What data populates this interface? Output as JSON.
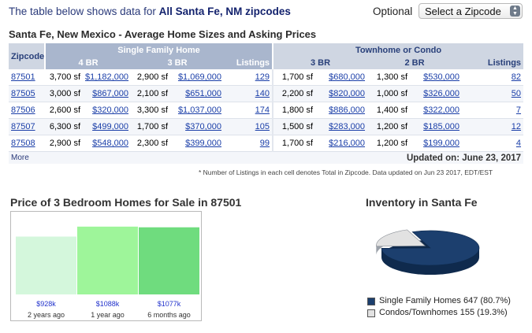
{
  "header": {
    "intro_text": "The table below shows data for",
    "intro_link": "All Santa Fe, NM zipcodes",
    "optional_label": "Optional",
    "zipcode_select": "Select a Zipcode"
  },
  "table": {
    "title": "Santa Fe, New Mexico - Average Home Sizes and Asking Prices",
    "zipcode_header": "Zipcode",
    "single_family_header": "Single Family Home",
    "townhome_header": "Townhome or Condo",
    "col_4br": "4 BR",
    "col_3br": "3 BR",
    "col_listings": "Listings",
    "col_th_3br": "3 BR",
    "col_th_2br": "2 BR",
    "col_th_listings": "Listings",
    "rows": [
      {
        "zip": "87501",
        "sf4_size": "3,700 sf",
        "sf4_price": "$1,182,000",
        "sf3_size": "2,900 sf",
        "sf3_price": "$1,069,000",
        "sf_listings": "129",
        "th3_size": "1,700 sf",
        "th3_price": "$680,000",
        "th2_size": "1,300 sf",
        "th2_price": "$530,000",
        "th_listings": "82"
      },
      {
        "zip": "87505",
        "sf4_size": "3,000 sf",
        "sf4_price": "$867,000",
        "sf3_size": "2,100 sf",
        "sf3_price": "$651,000",
        "sf_listings": "140",
        "th3_size": "2,200 sf",
        "th3_price": "$820,000",
        "th2_size": "1,000 sf",
        "th2_price": "$326,000",
        "th_listings": "50"
      },
      {
        "zip": "87506",
        "sf4_size": "2,600 sf",
        "sf4_price": "$320,000",
        "sf3_size": "3,300 sf",
        "sf3_price": "$1,037,000",
        "sf_listings": "174",
        "th3_size": "1,800 sf",
        "th3_price": "$886,000",
        "th2_size": "1,400 sf",
        "th2_price": "$322,000",
        "th_listings": "7"
      },
      {
        "zip": "87507",
        "sf4_size": "6,300 sf",
        "sf4_price": "$499,000",
        "sf3_size": "1,700 sf",
        "sf3_price": "$370,000",
        "sf_listings": "105",
        "th3_size": "1,500 sf",
        "th3_price": "$283,000",
        "th2_size": "1,200 sf",
        "th2_price": "$185,000",
        "th_listings": "12"
      },
      {
        "zip": "87508",
        "sf4_size": "2,900 sf",
        "sf4_price": "$548,000",
        "sf3_size": "2,300 sf",
        "sf3_price": "$399,000",
        "sf_listings": "99",
        "th3_size": "1,700 sf",
        "th3_price": "$216,000",
        "th2_size": "1,200 sf",
        "th2_price": "$199,000",
        "th_listings": "4"
      }
    ],
    "more_link": "More",
    "updated_on": "Updated on:   June 23, 2017",
    "footnote": "* Number of Listings in each cell denotes Total in Zipcode.   Data updated on Jun 23 2017, EDT/EST"
  },
  "price_chart": {
    "title": "Price of 3 Bedroom Homes for Sale in 87501"
  },
  "inventory": {
    "title": "Inventory in Santa Fe",
    "legend_single": "Single Family Homes 647 (80.7%)",
    "legend_condo": "Condos/Townhomes 155 (19.3%)"
  },
  "chart_data": [
    {
      "type": "bar",
      "title": "Price of 3 Bedroom Homes for Sale in 87501",
      "categories": [
        "2 years ago",
        "1 year ago",
        "6 months ago"
      ],
      "values": [
        928,
        1088,
        1077
      ],
      "value_labels": [
        "$928k",
        "$1088k",
        "$1077k"
      ],
      "colors": [
        "#d4f7dc",
        "#9ef59a",
        "#6fdc7e"
      ],
      "ylim": [
        0,
        1200
      ]
    },
    {
      "type": "pie",
      "title": "Inventory in Santa Fe",
      "labels": [
        "Single Family Homes",
        "Condos/Townhomes"
      ],
      "values": [
        647,
        155
      ],
      "percents": [
        80.7,
        19.3
      ],
      "colors": [
        "#1c3f6e",
        "#e2e2e2"
      ]
    }
  ]
}
